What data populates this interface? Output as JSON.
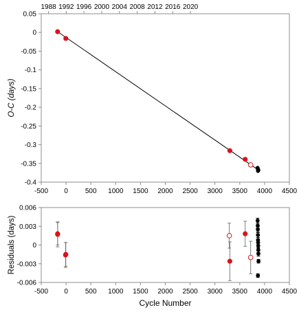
{
  "chart_data": [
    {
      "type": "scatter",
      "ylabel": "O-C (days)",
      "xlim": [
        -500,
        4500
      ],
      "ylim": [
        -0.4,
        0.05
      ],
      "x_ticks": [
        -500,
        0,
        500,
        1000,
        1500,
        2000,
        2500,
        3000,
        3500,
        4000,
        4500
      ],
      "y_ticks": [
        -0.4,
        -0.35,
        -0.3,
        -0.25,
        -0.2,
        -0.15,
        -0.1,
        -0.05,
        0,
        0.05
      ],
      "y_tick_labels": [
        "-0.4",
        "-0.35",
        "-0.3",
        "-0.25",
        "-0.2",
        "-0.15",
        "-0.1",
        "-0.05",
        "0",
        "0.05"
      ],
      "top_axis": {
        "ticks": [
          1988,
          1992,
          1996,
          2000,
          2004,
          2008,
          2012,
          2016,
          2020
        ],
        "cycle_positions": [
          -353,
          4,
          360,
          718,
          1076,
          1434,
          1791,
          2149,
          2507
        ]
      },
      "fit_line": {
        "x": [
          -170,
          3880
        ],
        "y": [
          0.002,
          -0.368
        ],
        "color": "#000000"
      },
      "series": [
        {
          "marker": "filled-circle",
          "color": "#d9141e",
          "x": [
            -170,
            -5,
            3300,
            3610
          ],
          "y": [
            0.002,
            -0.016,
            -0.316,
            -0.339
          ]
        },
        {
          "marker": "open-circle",
          "color": "#d9141e",
          "x": [
            3720
          ],
          "y": [
            -0.354
          ]
        },
        {
          "marker": "filled-circle",
          "color": "#000000",
          "x": [
            3860,
            3865,
            3870,
            3875,
            3868
          ],
          "y": [
            -0.362,
            -0.365,
            -0.366,
            -0.368,
            -0.37
          ]
        }
      ],
      "grid": false
    },
    {
      "type": "scatter",
      "xlabel": "Cycle Number",
      "ylabel": "Residuals (days)",
      "xlim": [
        -500,
        4500
      ],
      "ylim": [
        -0.006,
        0.006
      ],
      "x_ticks": [
        -500,
        0,
        500,
        1000,
        1500,
        2000,
        2500,
        3000,
        3500,
        4000,
        4500
      ],
      "y_ticks": [
        -0.006,
        -0.003,
        0,
        0.003,
        0.006
      ],
      "y_tick_labels": [
        "-0.006",
        "-0.003",
        "0",
        "0.003",
        "0.006"
      ],
      "series": [
        {
          "marker": "filled-circle",
          "color": "#d9141e",
          "x": [
            -170,
            -10,
            3300,
            3610
          ],
          "y": [
            0.0017,
            -0.0016,
            -0.0026,
            0.0018
          ],
          "yerr": [
            0.002,
            0.002,
            0.0031,
            0.002
          ]
        },
        {
          "marker": "open-circle",
          "color": "#d9141e",
          "x": [
            3290,
            3720
          ],
          "y": [
            0.0015,
            -0.002
          ],
          "yerr": [
            0.002,
            0.0026
          ]
        },
        {
          "marker": "filled-circle",
          "color": "#d9141e",
          "x": [
            -170,
            -5
          ],
          "y": [
            0.0018,
            -0.0015
          ],
          "yerr": [
            0.0018,
            0.0019
          ]
        },
        {
          "marker": "filled-circle",
          "color": "#000000",
          "x": [
            3860,
            3862,
            3864,
            3866,
            3868,
            3870,
            3872,
            3874,
            3876,
            3878,
            3866
          ],
          "y": [
            0.0039,
            0.0031,
            0.0025,
            0.0016,
            0.0008,
            0.0004,
            -0.0001,
            -0.0008,
            -0.0014,
            -0.0026,
            -0.0049
          ],
          "yerr": [
            0.0004,
            0.0004,
            0.0004,
            0.0004,
            0.0004,
            0.0004,
            0.0004,
            0.0004,
            0.0004,
            0.0003,
            0.0003
          ]
        }
      ],
      "grid": false
    }
  ]
}
